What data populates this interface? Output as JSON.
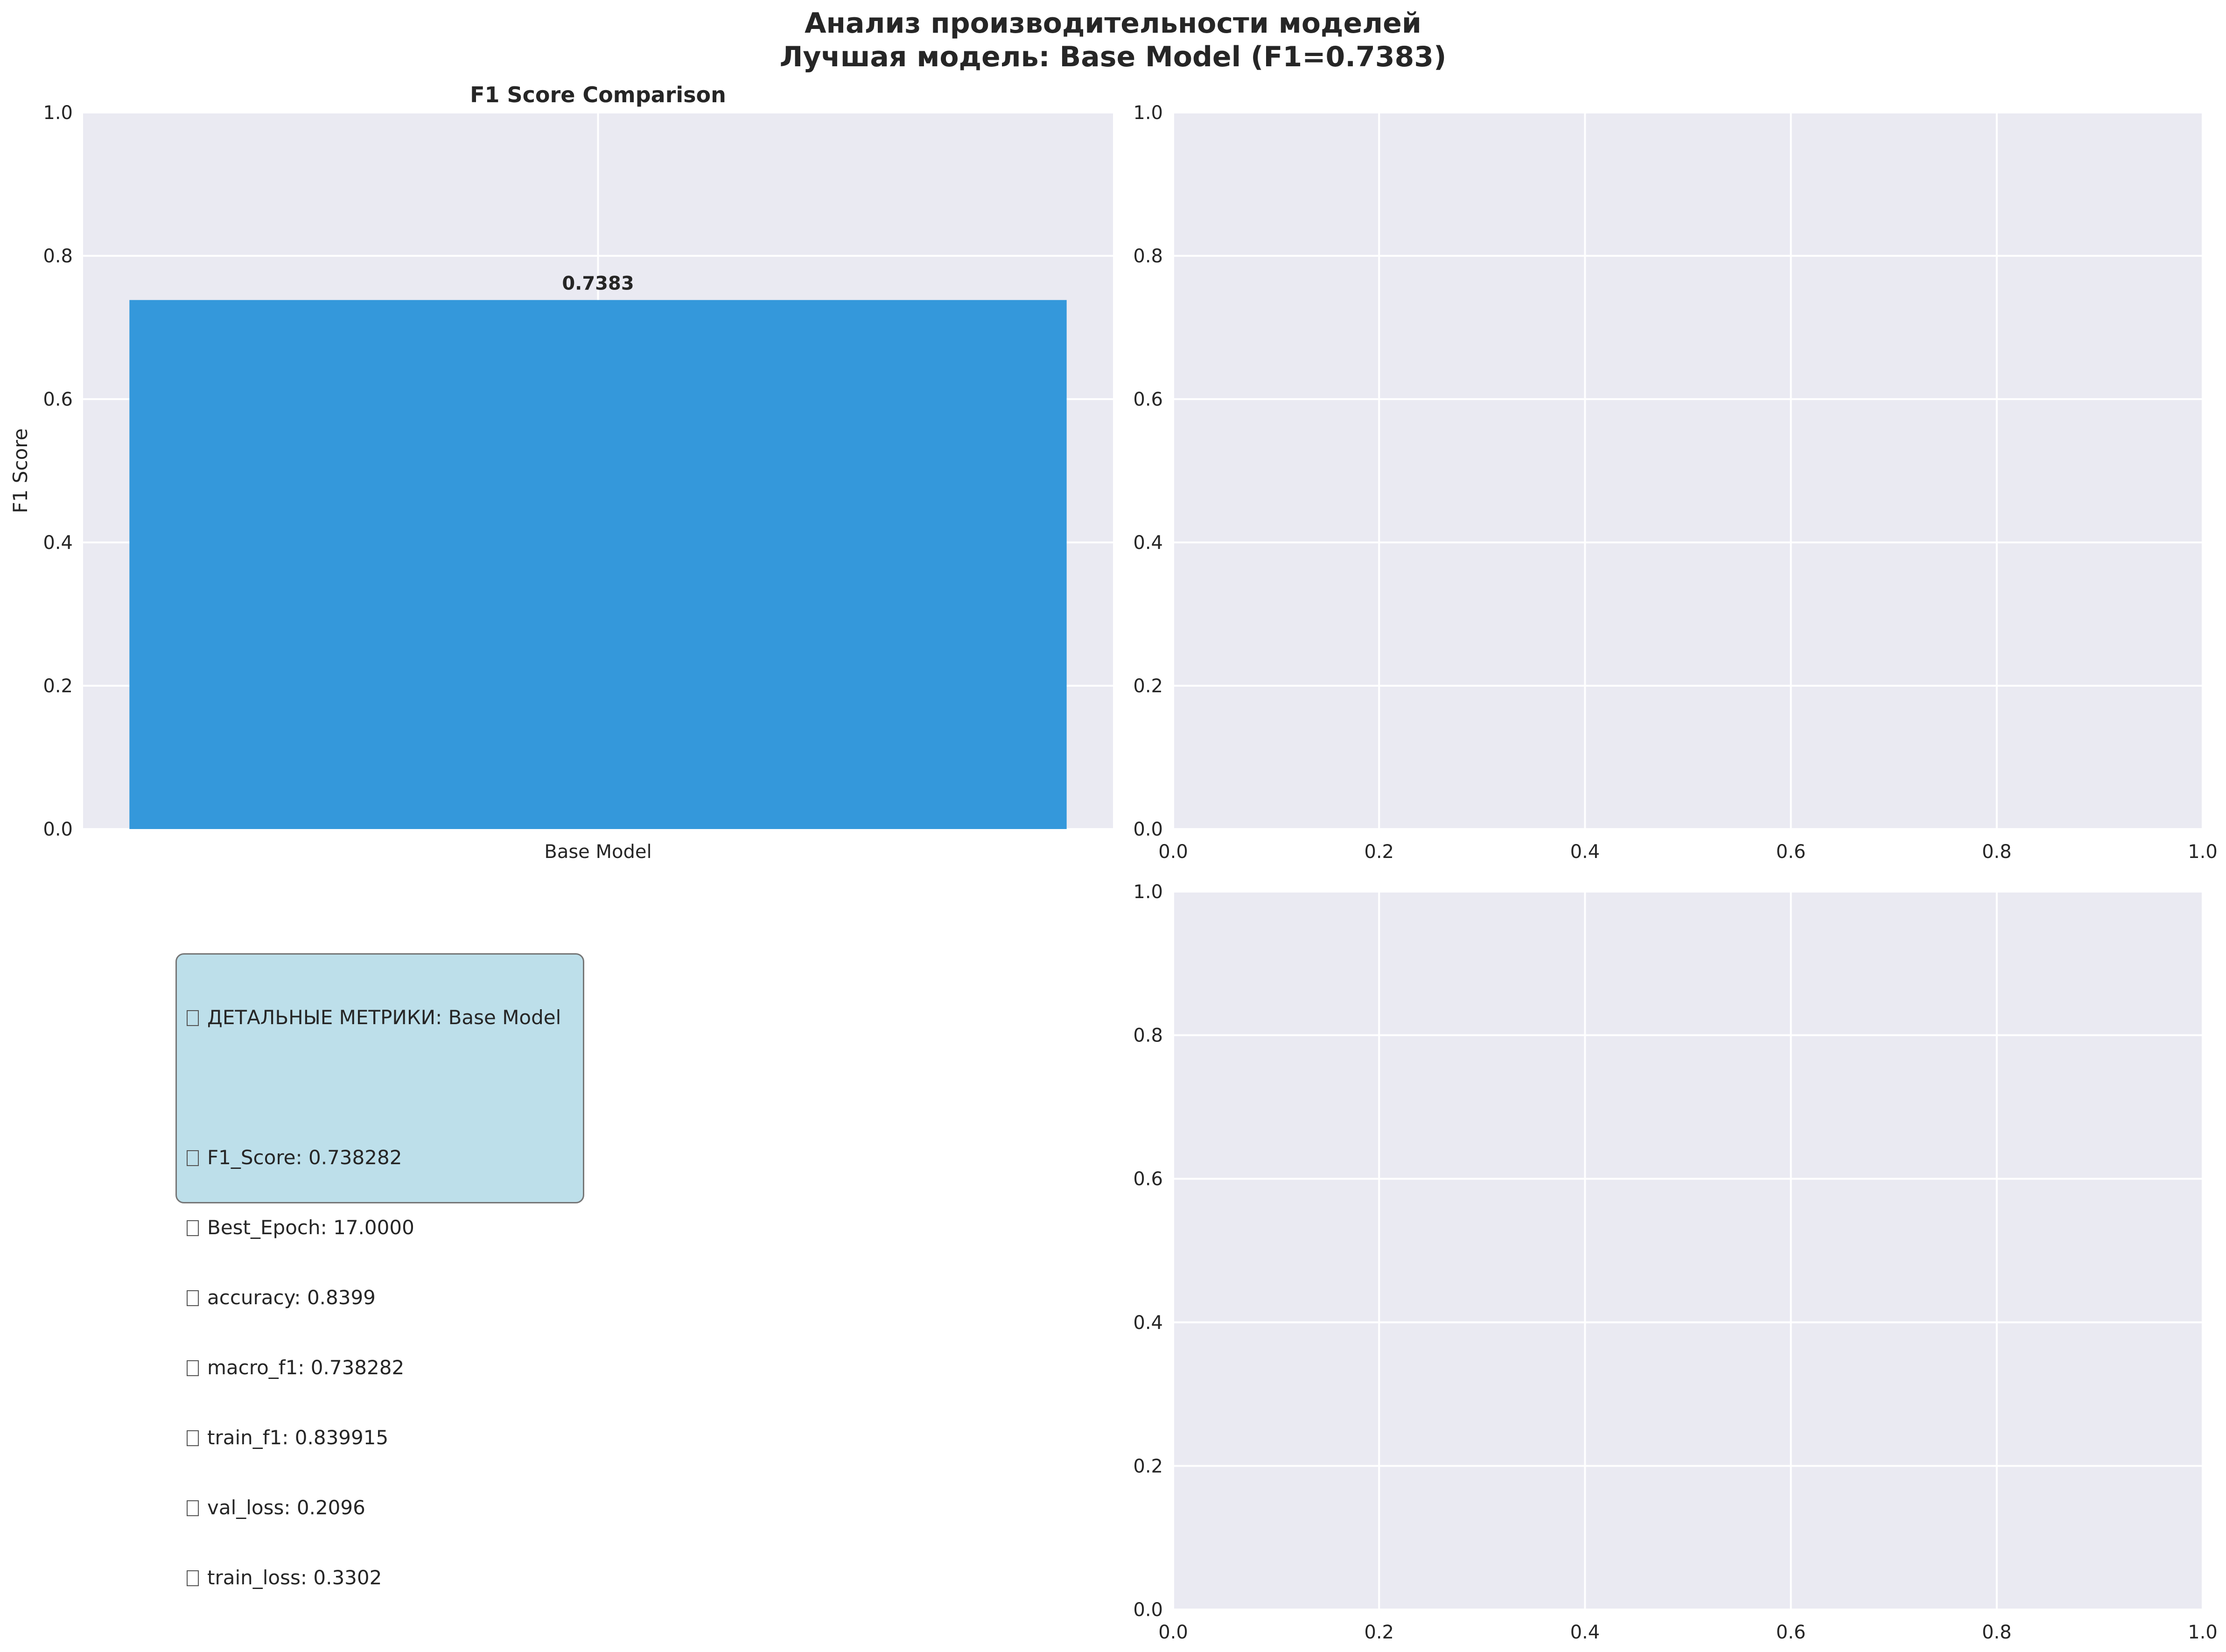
{
  "figure": {
    "title_line1": "Анализ производительности моделей",
    "title_line2": "Лучшая модель: Base Model (F1=0.7383)"
  },
  "colors": {
    "axes_bg": "#eaeaf2",
    "grid": "#ffffff",
    "bar": "#3498db",
    "text": "#262626",
    "info_box": "#add8e6"
  },
  "chart_data": [
    {
      "type": "bar",
      "title": "F1 Score Comparison",
      "categories": [
        "Base Model"
      ],
      "values": [
        0.7383
      ],
      "data_labels": [
        "0.7383"
      ],
      "ylabel": "F1 Score",
      "xlabel": "",
      "ylim": [
        0,
        1.0
      ],
      "yticks": [
        "0.0",
        "0.2",
        "0.4",
        "0.6",
        "0.8",
        "1.0"
      ],
      "grid": true
    },
    {
      "type": "scatter",
      "title": "",
      "xlabel": "",
      "ylabel": "",
      "xlim": [
        0,
        1.0
      ],
      "ylim": [
        0,
        1.0
      ],
      "xticks": [
        "0.0",
        "0.2",
        "0.4",
        "0.6",
        "0.8",
        "1.0"
      ],
      "yticks": [
        "0.0",
        "0.2",
        "0.4",
        "0.6",
        "0.8",
        "1.0"
      ],
      "series": [],
      "grid": true
    },
    {
      "type": "scatter",
      "title": "",
      "xlabel": "",
      "ylabel": "",
      "xlim": [
        0,
        1.0
      ],
      "ylim": [
        0,
        1.0
      ],
      "xticks": [
        "0.0",
        "0.2",
        "0.4",
        "0.6",
        "0.8",
        "1.0"
      ],
      "yticks": [
        "0.0",
        "0.2",
        "0.4",
        "0.6",
        "0.8",
        "1.0"
      ],
      "series": [],
      "grid": true
    }
  ],
  "metrics_box": {
    "header": "ДЕТАЛЬНЫЕ МЕТРИКИ: Base Model",
    "lines": [
      "F1_Score: 0.738282",
      "Best_Epoch: 17.0000",
      "accuracy: 0.8399",
      "macro_f1: 0.738282",
      "train_f1: 0.839915",
      "val_loss: 0.2096",
      "train_loss: 0.3302"
    ]
  }
}
